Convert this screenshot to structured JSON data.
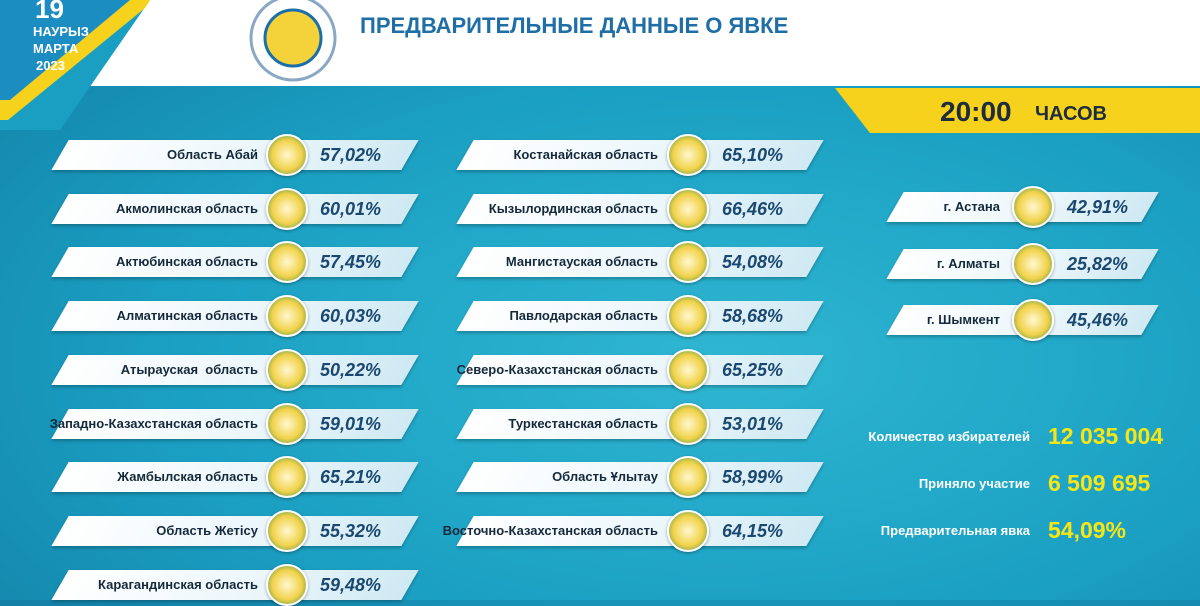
{
  "header": {
    "day": "19",
    "month_kz": "НАУРЫЗ",
    "month_ru": "МАРТА",
    "year": "2023",
    "title": "ПРЕДВАРИТЕЛЬНЫЕ ДАННЫЕ О ЯВКЕ",
    "time": "20:00",
    "time_unit": "ЧАСОВ"
  },
  "regions_left": [
    {
      "name": "Область Абай",
      "turnout": "57,02%"
    },
    {
      "name": "Акмолинская область",
      "turnout": "60,01%"
    },
    {
      "name": "Актюбинская область",
      "turnout": "57,45%"
    },
    {
      "name": "Алматинская область",
      "turnout": "60,03%"
    },
    {
      "name": "Атырауская  область",
      "turnout": "50,22%"
    },
    {
      "name": "Западно-Казахстанская область",
      "turnout": "59,01%"
    },
    {
      "name": "Жамбылская область",
      "turnout": "65,21%"
    },
    {
      "name": "Область Жетісу",
      "turnout": "55,32%"
    },
    {
      "name": "Карагандинская область",
      "turnout": "59,48%"
    }
  ],
  "regions_right": [
    {
      "name": "Костанайская область",
      "turnout": "65,10%"
    },
    {
      "name": "Кызылординская область",
      "turnout": "66,46%"
    },
    {
      "name": "Мангистауская область",
      "turnout": "54,08%"
    },
    {
      "name": "Павлодарская область",
      "turnout": "58,68%"
    },
    {
      "name": "Северо-Казахстанская область",
      "turnout": "65,25%"
    },
    {
      "name": "Туркестанская область",
      "turnout": "53,01%"
    },
    {
      "name": "Область Ұлытау",
      "turnout": "58,99%"
    },
    {
      "name": "Восточно-Казахстанская область",
      "turnout": "64,15%"
    }
  ],
  "cities": [
    {
      "name": "г. Астана",
      "turnout": "42,91%"
    },
    {
      "name": "г. Алматы",
      "turnout": "25,82%"
    },
    {
      "name": "г. Шымкент",
      "turnout": "45,46%"
    }
  ],
  "summary": [
    {
      "label": "Количество избирателей",
      "value": "12 035 004"
    },
    {
      "label": "Приняло участие",
      "value": "6 509 695"
    },
    {
      "label": "Предварительная явка",
      "value": "54,09%"
    }
  ]
}
